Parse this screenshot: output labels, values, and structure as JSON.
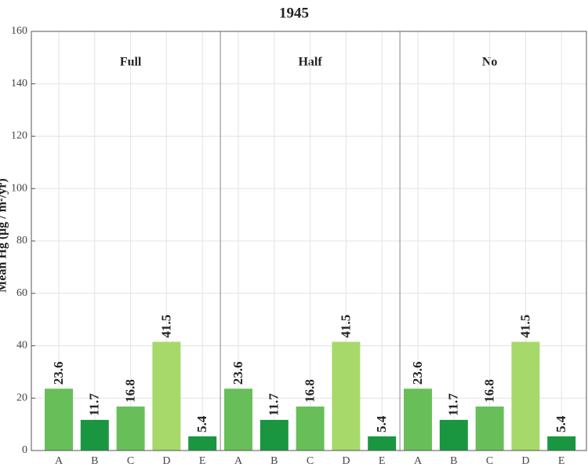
{
  "chart_data": {
    "type": "bar",
    "title": "1945",
    "ylabel": "Mean Hg (μg / m²/yr)",
    "categories": [
      "A",
      "B",
      "C",
      "D",
      "E"
    ],
    "colors": [
      "#68bf59",
      "#1a9641",
      "#68bf59",
      "#a6d96a",
      "#1a9641"
    ],
    "groups": [
      {
        "name": "Full",
        "values": [
          23.6,
          11.7,
          16.8,
          41.5,
          5.4
        ]
      },
      {
        "name": "Half",
        "values": [
          23.6,
          11.7,
          16.8,
          41.5,
          5.4
        ]
      },
      {
        "name": "No",
        "values": [
          23.6,
          11.7,
          16.8,
          41.5,
          5.4
        ]
      }
    ],
    "ylim": [
      0,
      160
    ],
    "yticks": [
      0,
      20,
      40,
      60,
      80,
      100,
      120,
      140,
      160
    ],
    "grid": true
  }
}
